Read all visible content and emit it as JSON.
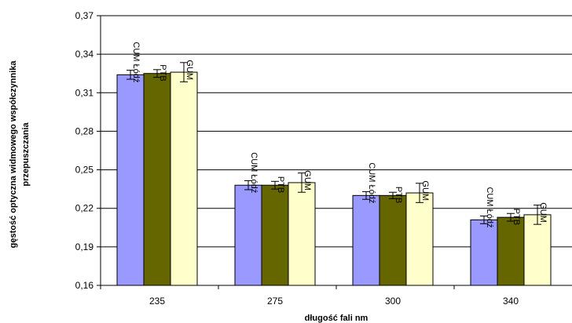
{
  "chart_data": {
    "type": "bar",
    "categories": [
      "235",
      "275",
      "300",
      "340"
    ],
    "series": [
      {
        "values": [
          0.324,
          0.238,
          0.23,
          0.211
        ],
        "errors": [
          0.0035,
          0.0035,
          0.003,
          0.003
        ],
        "label": "CUM Łódź",
        "color": "#9999ff"
      },
      {
        "values": [
          0.325,
          0.238,
          0.23,
          0.213
        ],
        "errors": [
          0.003,
          0.003,
          0.0025,
          0.003
        ],
        "label": "PTB",
        "color": "#666600"
      },
      {
        "values": [
          0.326,
          0.24,
          0.232,
          0.215
        ],
        "errors": [
          0.0075,
          0.0075,
          0.0075,
          0.0075
        ],
        "label": "GUM",
        "color": "#ffffcc"
      }
    ],
    "xlabel": "długość fali nm",
    "ylabel_lines": [
      "gęstość optyczna widmowego współczynnika",
      "przepuszczania"
    ],
    "ylim": [
      0.16,
      0.37
    ],
    "yticks": [
      "0,16",
      "0,19",
      "0,22",
      "0,25",
      "0,28",
      "0,31",
      "0,34",
      "0,37"
    ],
    "grid": true
  }
}
